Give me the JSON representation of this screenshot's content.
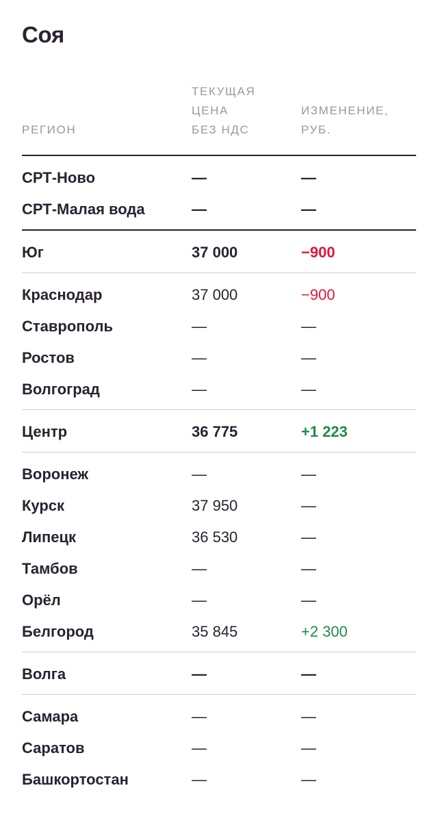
{
  "title": "Соя",
  "columns": {
    "region": "РЕГИОН",
    "price": [
      "ТЕКУЩАЯ",
      "ЦЕНА",
      "БЕЗ НДС"
    ],
    "change": [
      "ИЗМЕНЕНИЕ,",
      "РУБ."
    ]
  },
  "colors": {
    "text": "#2a2230",
    "header": "#9b979d",
    "negative": "#e0163c",
    "positive": "#1e8a4c"
  },
  "sections": [
    {
      "type": "plain",
      "rows": [
        {
          "region": "СРТ-Ново",
          "price": "—",
          "change": "—"
        },
        {
          "region": "СРТ-Малая вода",
          "price": "—",
          "change": "—"
        }
      ]
    },
    {
      "type": "group",
      "rows": [
        {
          "region": "Юг",
          "price": "37 000",
          "change": "−900",
          "trend": "neg"
        }
      ]
    },
    {
      "type": "sub",
      "rows": [
        {
          "region": "Краснодар",
          "price": "37 000",
          "change": "−900",
          "trend": "neg"
        },
        {
          "region": "Ставрополь",
          "price": "—",
          "change": "—"
        },
        {
          "region": "Ростов",
          "price": "—",
          "change": "—"
        },
        {
          "region": "Волгоград",
          "price": "—",
          "change": "—"
        }
      ]
    },
    {
      "type": "group",
      "rows": [
        {
          "region": "Центр",
          "price": "36 775",
          "change": "+1 223",
          "trend": "pos"
        }
      ]
    },
    {
      "type": "sub",
      "rows": [
        {
          "region": "Воронеж",
          "price": "—",
          "change": "—"
        },
        {
          "region": "Курск",
          "price": "37 950",
          "change": "—"
        },
        {
          "region": "Липецк",
          "price": "36 530",
          "change": "—"
        },
        {
          "region": "Тамбов",
          "price": "—",
          "change": "—"
        },
        {
          "region": "Орёл",
          "price": "—",
          "change": "—"
        },
        {
          "region": "Белгород",
          "price": "35 845",
          "change": "+2 300",
          "trend": "pos"
        }
      ]
    },
    {
      "type": "group",
      "rows": [
        {
          "region": "Волга",
          "price": "—",
          "change": "—"
        }
      ]
    },
    {
      "type": "sub",
      "rows": [
        {
          "region": "Самара",
          "price": "—",
          "change": "—"
        },
        {
          "region": "Саратов",
          "price": "—",
          "change": "—"
        },
        {
          "region": "Башкортостан",
          "price": "—",
          "change": "—"
        }
      ]
    }
  ]
}
